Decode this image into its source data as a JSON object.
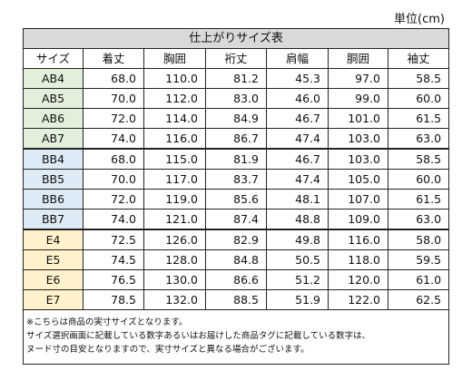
{
  "unit_label": "単位(cm)",
  "table_title": "仕上がりサイズ表",
  "columns": [
    "サイズ",
    "着丈",
    "胸囲",
    "裄丈",
    "肩幅",
    "胴囲",
    "袖丈"
  ],
  "rows": [
    {
      "size": "AB4",
      "group": "ab",
      "values": [
        "68.0",
        "110.0",
        "81.2",
        "45.3",
        "97.0",
        "58.5"
      ]
    },
    {
      "size": "AB5",
      "group": "ab",
      "values": [
        "70.0",
        "112.0",
        "83.0",
        "46.0",
        "99.0",
        "60.0"
      ]
    },
    {
      "size": "AB6",
      "group": "ab",
      "values": [
        "72.0",
        "114.0",
        "84.9",
        "46.7",
        "101.0",
        "61.5"
      ]
    },
    {
      "size": "AB7",
      "group": "ab",
      "values": [
        "74.0",
        "116.0",
        "86.7",
        "47.4",
        "103.0",
        "63.0"
      ]
    },
    {
      "size": "BB4",
      "group": "bb",
      "values": [
        "68.0",
        "115.0",
        "81.9",
        "46.7",
        "103.0",
        "58.5"
      ]
    },
    {
      "size": "BB5",
      "group": "bb",
      "values": [
        "70.0",
        "117.0",
        "83.7",
        "47.4",
        "105.0",
        "60.0"
      ]
    },
    {
      "size": "BB6",
      "group": "bb",
      "values": [
        "72.0",
        "119.0",
        "85.6",
        "48.1",
        "107.0",
        "61.5"
      ]
    },
    {
      "size": "BB7",
      "group": "bb",
      "values": [
        "74.0",
        "121.0",
        "87.4",
        "48.8",
        "109.0",
        "63.0"
      ]
    },
    {
      "size": "E4",
      "group": "e",
      "values": [
        "72.5",
        "126.0",
        "82.9",
        "49.8",
        "116.0",
        "58.0"
      ]
    },
    {
      "size": "E5",
      "group": "e",
      "values": [
        "74.5",
        "128.0",
        "84.8",
        "50.5",
        "118.0",
        "59.5"
      ]
    },
    {
      "size": "E6",
      "group": "e",
      "values": [
        "76.5",
        "130.0",
        "86.6",
        "51.2",
        "120.0",
        "61.0"
      ]
    },
    {
      "size": "E7",
      "group": "e",
      "values": [
        "78.5",
        "132.0",
        "88.5",
        "51.9",
        "122.0",
        "62.5"
      ]
    }
  ],
  "notes": [
    "※こちらは商品の実寸サイズとなります。",
    "サイズ選択画面に記載している数字あるいはお届けした商品タグに記載している数字は、",
    "ヌード寸の目安となりますので、実寸サイズと異なる場合がございます。"
  ],
  "colors": {
    "ab": "#e2efda",
    "bb": "#ddebf7",
    "e": "#fff2cc",
    "title_bg": "#d9d9d9"
  }
}
